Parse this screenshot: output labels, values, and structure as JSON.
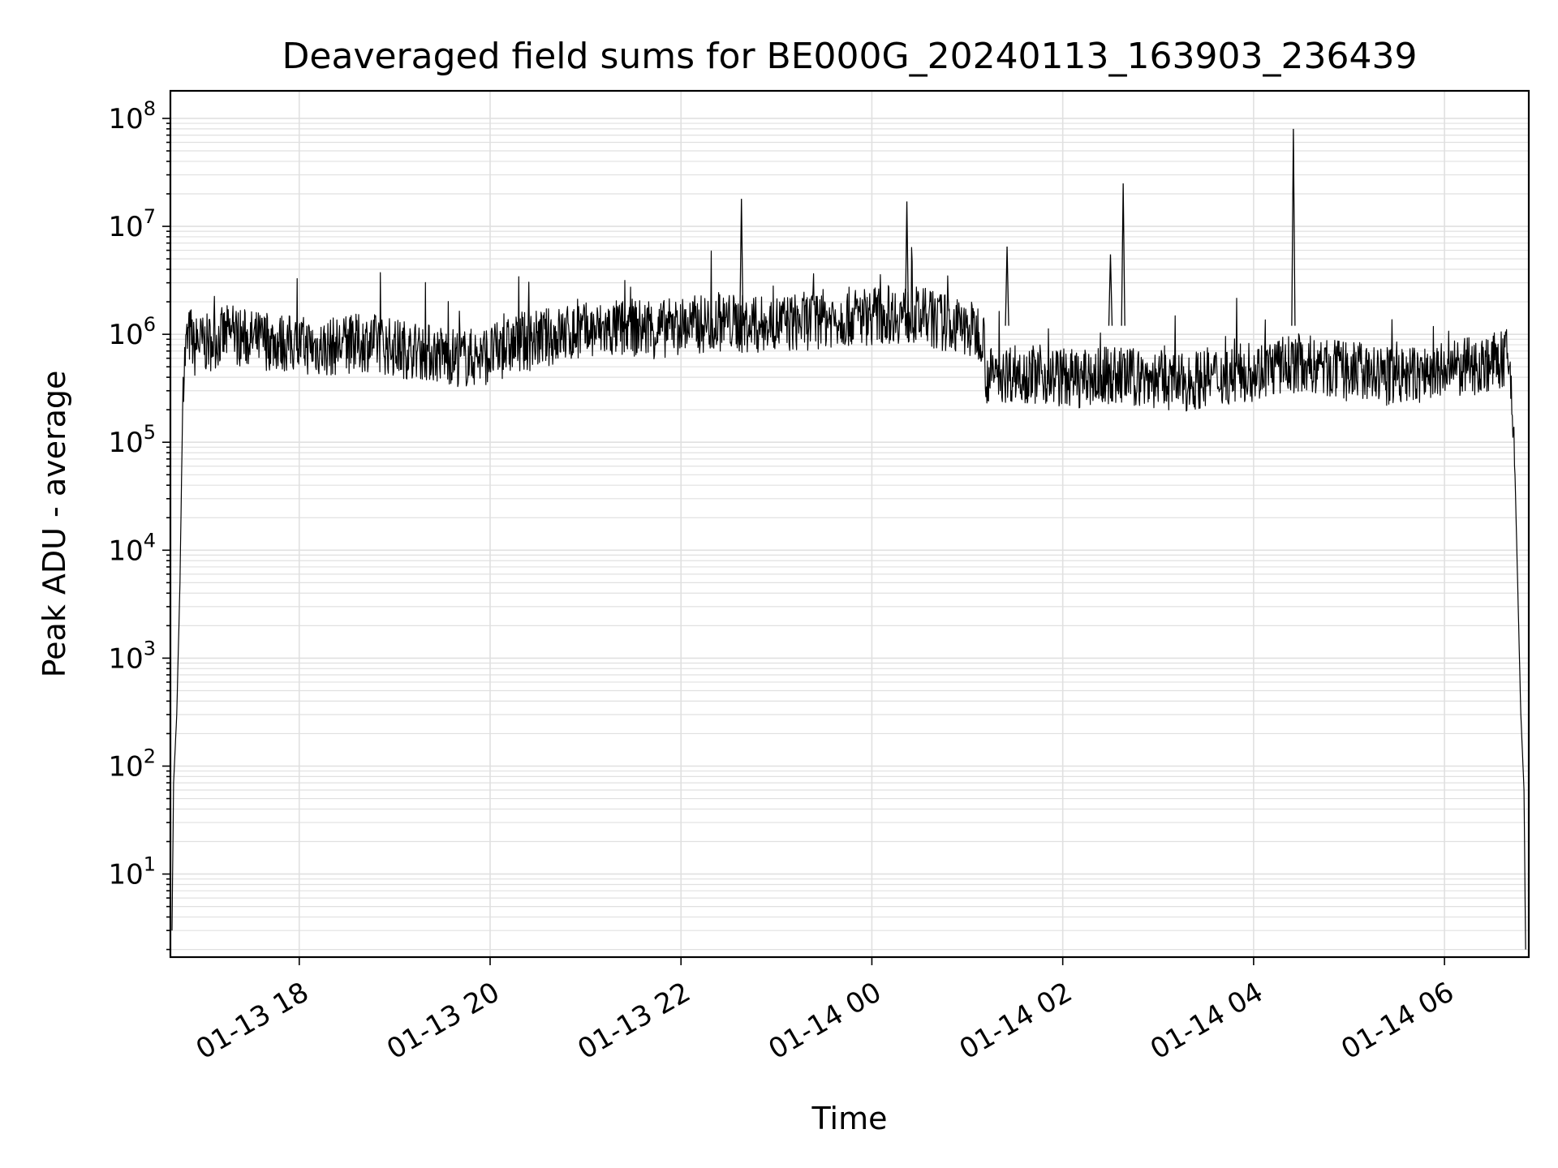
{
  "chart_data": {
    "type": "line",
    "title": "Deaveraged field sums for BE000G_20240113_163903_236439",
    "xlabel": "Time",
    "ylabel": "Peak ADU - average",
    "y_scale": "log",
    "ylim": [
      1.7,
      180000000
    ],
    "xlim": [
      "2024-01-13 16:39",
      "2024-01-14 06:53"
    ],
    "grid": "on",
    "line_color": "#000000",
    "grid_color": "#e0e0e0",
    "x_ticks": [
      {
        "value": "2024-01-13 18:00",
        "label": "01-13 18"
      },
      {
        "value": "2024-01-13 20:00",
        "label": "01-13 20"
      },
      {
        "value": "2024-01-13 22:00",
        "label": "01-13 22"
      },
      {
        "value": "2024-01-14 00:00",
        "label": "01-14 00"
      },
      {
        "value": "2024-01-14 02:00",
        "label": "01-14 02"
      },
      {
        "value": "2024-01-14 04:00",
        "label": "01-14 04"
      },
      {
        "value": "2024-01-14 06:00",
        "label": "01-14 06"
      }
    ],
    "y_ticks": [
      {
        "value": 10,
        "base": "10",
        "exp": "1"
      },
      {
        "value": 100,
        "base": "10",
        "exp": "2"
      },
      {
        "value": 1000,
        "base": "10",
        "exp": "3"
      },
      {
        "value": 10000,
        "base": "10",
        "exp": "4"
      },
      {
        "value": 100000,
        "base": "10",
        "exp": "5"
      },
      {
        "value": 1000000,
        "base": "10",
        "exp": "6"
      },
      {
        "value": 10000000,
        "base": "10",
        "exp": "7"
      },
      {
        "value": 100000000,
        "base": "10",
        "exp": "8"
      }
    ],
    "series": [
      {
        "x": [
          "2024-01-13 16:40",
          "2024-01-13 16:41",
          "2024-01-13 16:43",
          "2024-01-13 16:45",
          "2024-01-13 16:47",
          "2024-01-13 16:49",
          "2024-01-13 16:50",
          "2024-01-13 16:52",
          "2024-01-13 16:54",
          "2024-01-13 16:56",
          "2024-01-13 16:57",
          "2024-01-13 17:00",
          "2024-01-13 17:15",
          "2024-01-13 17:30",
          "2024-01-13 17:45",
          "2024-01-13 18:00",
          "2024-01-13 18:15",
          "2024-01-13 18:30",
          "2024-01-13 18:45",
          "2024-01-13 19:00",
          "2024-01-13 19:15",
          "2024-01-13 19:30",
          "2024-01-13 19:45",
          "2024-01-13 20:00",
          "2024-01-13 20:15",
          "2024-01-13 20:30",
          "2024-01-13 20:45",
          "2024-01-13 21:00",
          "2024-01-13 21:15",
          "2024-01-13 21:30",
          "2024-01-13 21:45",
          "2024-01-13 22:00",
          "2024-01-13 22:15",
          "2024-01-13 22:30",
          "2024-01-13 22:45",
          "2024-01-13 23:00",
          "2024-01-13 23:15",
          "2024-01-13 23:30",
          "2024-01-13 23:45",
          "2024-01-14 00:00",
          "2024-01-14 00:15",
          "2024-01-14 00:30",
          "2024-01-14 00:45",
          "2024-01-14 01:00",
          "2024-01-14 01:10",
          "2024-01-14 01:12",
          "2024-01-14 01:30",
          "2024-01-14 01:45",
          "2024-01-14 02:00",
          "2024-01-14 02:15",
          "2024-01-14 02:30",
          "2024-01-14 02:45",
          "2024-01-14 03:00",
          "2024-01-14 03:15",
          "2024-01-14 03:30",
          "2024-01-14 03:45",
          "2024-01-14 04:00",
          "2024-01-14 04:15",
          "2024-01-14 04:30",
          "2024-01-14 04:45",
          "2024-01-14 05:00",
          "2024-01-14 05:15",
          "2024-01-14 05:30",
          "2024-01-14 05:45",
          "2024-01-14 06:00",
          "2024-01-14 06:15",
          "2024-01-14 06:30",
          "2024-01-14 06:40",
          "2024-01-14 06:42",
          "2024-01-14 06:44",
          "2024-01-14 06:46",
          "2024-01-14 06:48",
          "2024-01-14 06:50",
          "2024-01-14 06:51"
        ],
        "values": [
          3,
          70,
          300,
          5000,
          400000,
          800000,
          900000,
          1000000,
          700000,
          900000,
          850000,
          800000,
          1000000,
          900000,
          850000,
          800000,
          750000,
          800000,
          850000,
          750000,
          700000,
          650000,
          600000,
          650000,
          800000,
          900000,
          1000000,
          1050000,
          1100000,
          1150000,
          1100000,
          1200000,
          1250000,
          1300000,
          1200000,
          1250000,
          1300000,
          1400000,
          1450000,
          1500000,
          1550000,
          1450000,
          1300000,
          1100000,
          1050000,
          400000,
          450000,
          420000,
          400000,
          380000,
          420000,
          400000,
          380000,
          350000,
          400000,
          420000,
          450000,
          500000,
          550000,
          480000,
          450000,
          420000,
          400000,
          420000,
          450000,
          500000,
          550000,
          600000,
          300000,
          80000,
          5000,
          300,
          60,
          2
        ]
      }
    ],
    "spikes": [
      {
        "x": "2024-01-13 22:38",
        "y": 18000000
      },
      {
        "x": "2024-01-14 00:22",
        "y": 17000000
      },
      {
        "x": "2024-01-14 02:38",
        "y": 25000000
      },
      {
        "x": "2024-01-14 04:25",
        "y": 80000000
      },
      {
        "x": "2024-01-14 01:25",
        "y": 6500000
      },
      {
        "x": "2024-01-14 02:30",
        "y": 5500000
      }
    ]
  }
}
